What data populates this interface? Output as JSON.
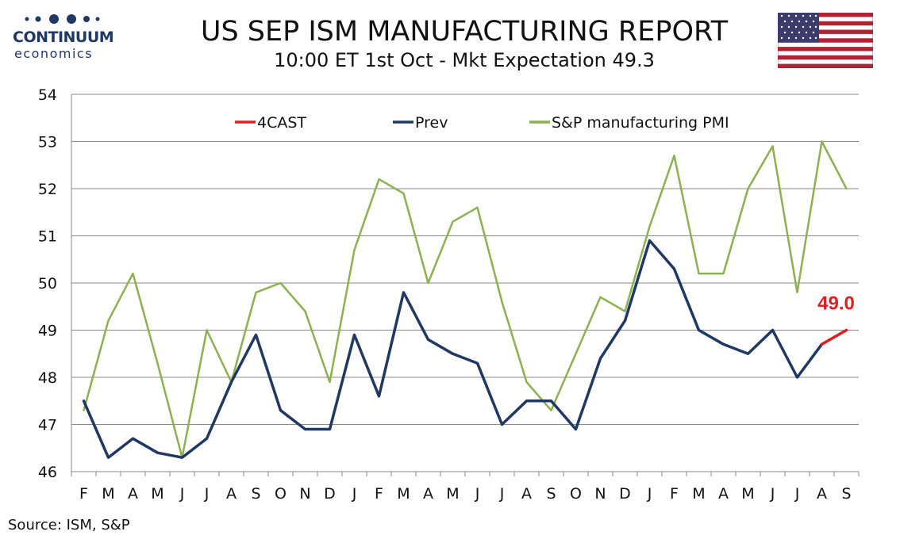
{
  "header": {
    "title": "US SEP ISM MANUFACTURING REPORT",
    "subtitle": "10:00 ET 1st Oct - Mkt Expectation 49.3"
  },
  "logo": {
    "line1": "CONTINUUM",
    "line2": "economics",
    "color": "#1f3864"
  },
  "flag": {
    "icon": "us-flag-icon"
  },
  "source": "Source: ISM, S&P",
  "colors": {
    "forecast": "#e02020",
    "prev": "#1f3864",
    "pmi": "#8db050",
    "grid": "#888888"
  },
  "chart_data": {
    "type": "line",
    "categories": [
      "F",
      "M",
      "A",
      "M",
      "J",
      "J",
      "A",
      "S",
      "O",
      "N",
      "D",
      "J",
      "F",
      "M",
      "A",
      "M",
      "J",
      "J",
      "A",
      "S",
      "O",
      "N",
      "D",
      "J",
      "F",
      "M",
      "A",
      "M",
      "J",
      "J",
      "A",
      "S"
    ],
    "ylim": [
      46,
      54
    ],
    "yticks": [
      46,
      47,
      48,
      49,
      50,
      51,
      52,
      53,
      54
    ],
    "grid": true,
    "legend_position": "top",
    "series": [
      {
        "name": "4CAST",
        "color": "#e02020",
        "values": [
          null,
          null,
          null,
          null,
          null,
          null,
          null,
          null,
          null,
          null,
          null,
          null,
          null,
          null,
          null,
          null,
          null,
          null,
          null,
          null,
          null,
          null,
          null,
          null,
          null,
          null,
          null,
          null,
          null,
          null,
          48.7,
          49.0
        ]
      },
      {
        "name": "Prev",
        "color": "#1f3864",
        "values": [
          47.5,
          46.3,
          46.7,
          46.4,
          46.3,
          46.7,
          47.9,
          48.9,
          47.3,
          46.9,
          46.9,
          48.9,
          47.6,
          49.8,
          48.8,
          48.5,
          48.3,
          47.0,
          47.5,
          47.5,
          46.9,
          48.4,
          49.2,
          50.9,
          50.3,
          49.0,
          48.7,
          48.5,
          49.0,
          48.0,
          48.7,
          null
        ]
      },
      {
        "name": "S&P manufacturing PMI",
        "color": "#8db050",
        "values": [
          47.3,
          49.2,
          50.2,
          48.3,
          46.3,
          49.0,
          47.9,
          49.8,
          50.0,
          49.4,
          47.9,
          50.7,
          52.2,
          51.9,
          50.0,
          51.3,
          51.6,
          49.6,
          47.9,
          47.3,
          48.5,
          49.7,
          49.4,
          51.2,
          52.7,
          50.2,
          50.2,
          52.0,
          52.9,
          49.8,
          53.0,
          52.0
        ]
      }
    ],
    "annotations": [
      {
        "text": "49.0",
        "category_index": 31,
        "value": 49.0,
        "color": "#e02020"
      }
    ]
  }
}
